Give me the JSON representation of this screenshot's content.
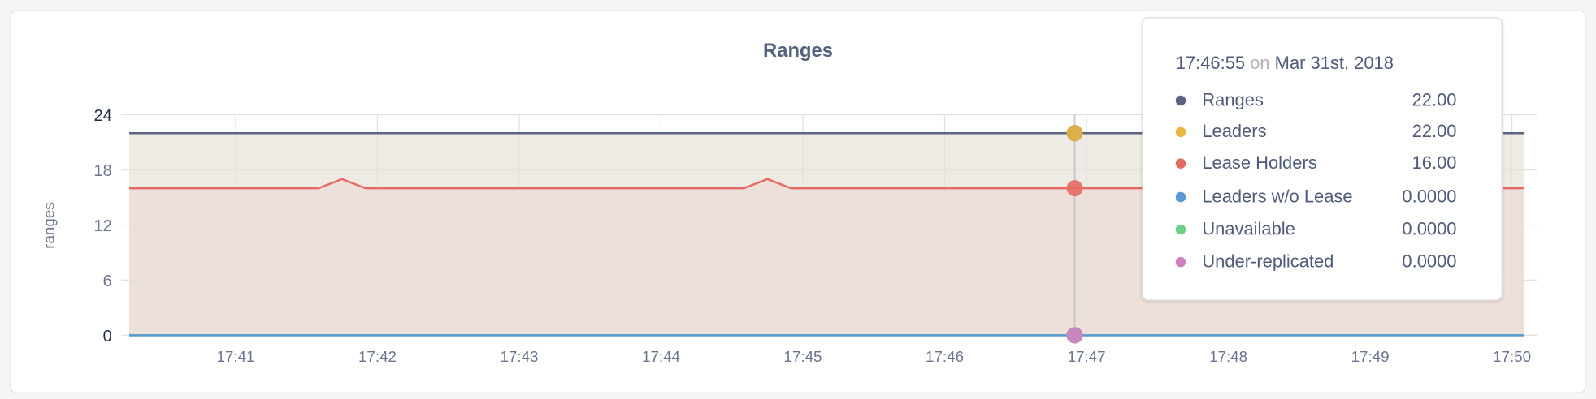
{
  "chart_data": {
    "type": "area",
    "title": "Ranges",
    "ylabel": "ranges",
    "xlabel": "",
    "ylim": [
      0,
      24
    ],
    "xlim": [
      "17:40:15",
      "17:50:05"
    ],
    "yticks": [
      "0",
      "6",
      "12",
      "18",
      "24"
    ],
    "xticks": [
      "17:41",
      "17:42",
      "17:43",
      "17:44",
      "17:45",
      "17:46",
      "17:47",
      "17:48",
      "17:49",
      "17:50"
    ],
    "grid": true,
    "series": [
      {
        "name": "Ranges",
        "color": "#5a6480",
        "x": [
          "17:40:15",
          "17:50:05"
        ],
        "values": [
          22,
          22
        ]
      },
      {
        "name": "Leaders",
        "color": "#e8b740",
        "fill": "#eeebe4",
        "x": [
          "17:40:15",
          "17:50:05"
        ],
        "values": [
          22,
          22
        ]
      },
      {
        "name": "Lease Holders",
        "color": "#e56b62",
        "fill": "#eddfd9",
        "x": [
          "17:40:15",
          "17:41:35",
          "17:41:45",
          "17:41:55",
          "17:44:35",
          "17:44:45",
          "17:44:55",
          "17:50:05"
        ],
        "values": [
          16,
          16,
          17,
          16,
          16,
          17,
          16,
          16
        ]
      },
      {
        "name": "Leaders w/o Lease",
        "color": "#5a9bd4",
        "x": [
          "17:40:15",
          "17:50:05"
        ],
        "values": [
          0,
          0
        ]
      },
      {
        "name": "Unavailable",
        "color": "#6fd08c",
        "x": [
          "17:40:15",
          "17:50:05"
        ],
        "values": [
          0,
          0
        ]
      },
      {
        "name": "Under-replicated",
        "color": "#d17fc0",
        "x": [
          "17:40:15",
          "17:50:05"
        ],
        "values": [
          0,
          0
        ]
      }
    ],
    "hover": {
      "time": "17:46:55",
      "on": "on",
      "date": "Mar 31st, 2018"
    },
    "tooltip_rows": [
      {
        "label": "Ranges",
        "value": "22.00",
        "color": "#5a6480"
      },
      {
        "label": "Leaders",
        "value": "22.00",
        "color": "#e8b740"
      },
      {
        "label": "Lease Holders",
        "value": "16.00",
        "color": "#e56b62"
      },
      {
        "label": "Leaders w/o Lease",
        "value": "0.0000",
        "color": "#5a9bd4"
      },
      {
        "label": "Unavailable",
        "value": "0.0000",
        "color": "#6fd08c"
      },
      {
        "label": "Under-replicated",
        "value": "0.0000",
        "color": "#d17fc0"
      }
    ]
  }
}
